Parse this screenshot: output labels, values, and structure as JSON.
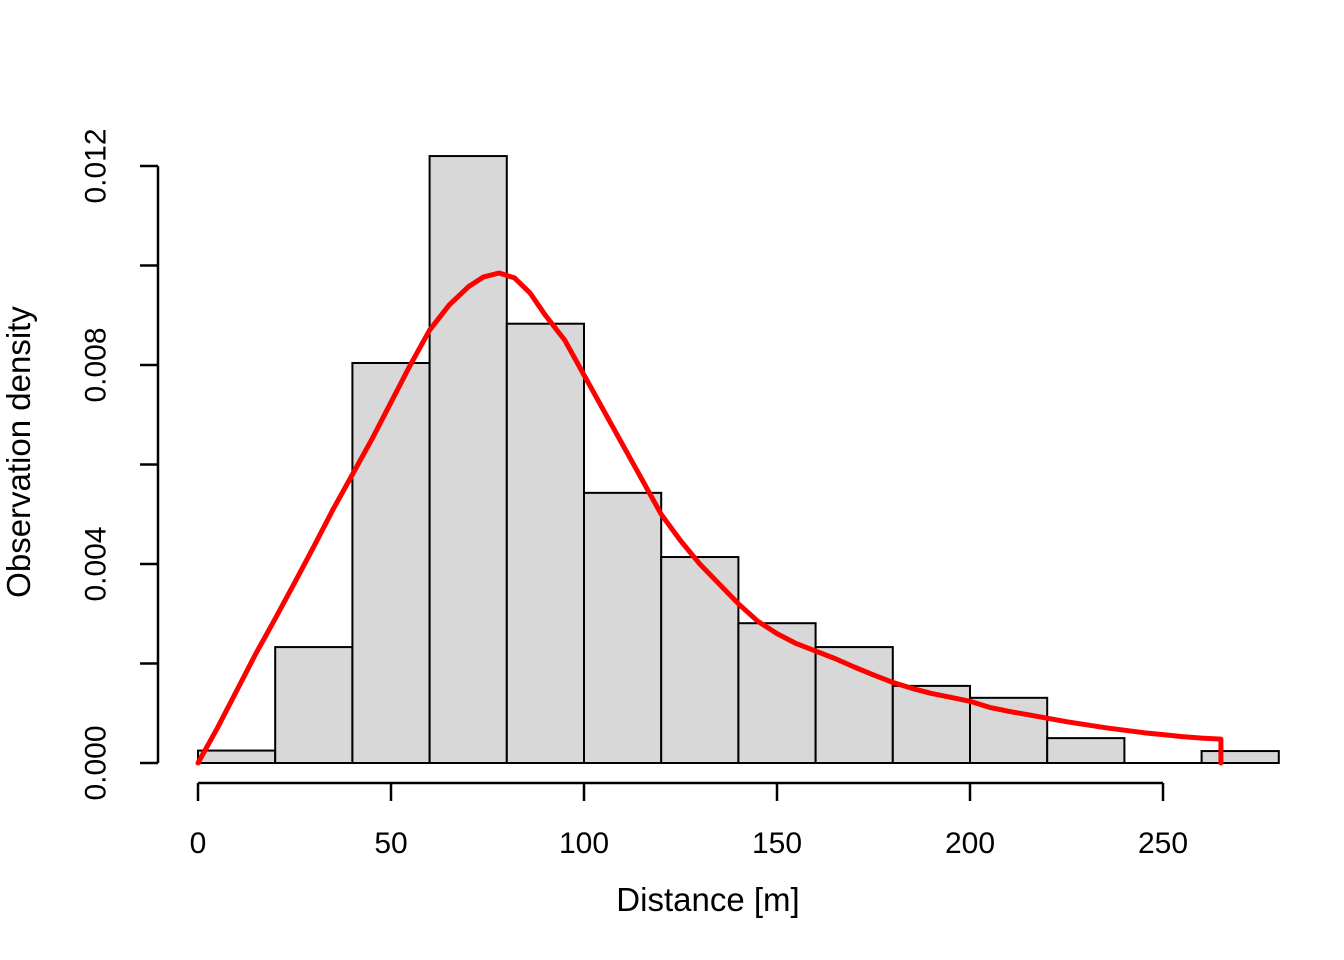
{
  "figure": {
    "background": "#ffffff"
  },
  "chart_data": {
    "type": "bar",
    "subtype": "histogram with fitted density curve overlay",
    "title": "",
    "xlabel": "Distance [m]",
    "ylabel": "Observation density",
    "xlim": [
      0,
      280
    ],
    "ylim": [
      0,
      0.012
    ],
    "grid": false,
    "legend_position": "none",
    "x_ticks": {
      "values": [
        0,
        50,
        100,
        150,
        200,
        250
      ],
      "labels": [
        "0",
        "50",
        "100",
        "150",
        "200",
        "250"
      ]
    },
    "y_ticks": {
      "values": [
        0,
        0.002,
        0.004,
        0.006,
        0.008,
        0.01,
        0.012
      ],
      "labels": [
        "0.000",
        "",
        "0.004",
        "",
        "0.008",
        "",
        "0.012"
      ]
    },
    "histogram": {
      "bin_edges": [
        0,
        20,
        40,
        60,
        80,
        100,
        120,
        140,
        160,
        180,
        200,
        220,
        240,
        260,
        280
      ],
      "densities": [
        0.00025,
        0.00233,
        0.00804,
        0.0122,
        0.00883,
        0.00543,
        0.00414,
        0.00281,
        0.00233,
        0.00155,
        0.00131,
        0.0005,
        0,
        0.00024
      ],
      "fill_color": "#d8d8d8",
      "border_color": "#000000"
    },
    "curve": {
      "name": "fitted-observation-density-curve",
      "color": "#ff0000",
      "stroke_width": 5,
      "truncation_x": 265,
      "peak": [
        77,
        0.0098
      ],
      "points": [
        [
          0,
          0
        ],
        [
          5,
          0.0007
        ],
        [
          10,
          0.00145
        ],
        [
          15,
          0.0022
        ],
        [
          20,
          0.0029
        ],
        [
          25,
          0.00362
        ],
        [
          30,
          0.00435
        ],
        [
          35,
          0.0051
        ],
        [
          40,
          0.0058
        ],
        [
          45,
          0.0065
        ],
        [
          50,
          0.00725
        ],
        [
          55,
          0.008
        ],
        [
          60,
          0.0087
        ],
        [
          65,
          0.0092
        ],
        [
          70,
          0.00957
        ],
        [
          74,
          0.00977
        ],
        [
          78,
          0.00985
        ],
        [
          82,
          0.00975
        ],
        [
          86,
          0.00945
        ],
        [
          90,
          0.009
        ],
        [
          95,
          0.0085
        ],
        [
          100,
          0.0078
        ],
        [
          105,
          0.0071
        ],
        [
          110,
          0.0064
        ],
        [
          115,
          0.0057
        ],
        [
          120,
          0.005
        ],
        [
          125,
          0.00447
        ],
        [
          130,
          0.004
        ],
        [
          135,
          0.0036
        ],
        [
          140,
          0.0032
        ],
        [
          145,
          0.00285
        ],
        [
          150,
          0.0026
        ],
        [
          155,
          0.0024
        ],
        [
          160,
          0.00225
        ],
        [
          165,
          0.0021
        ],
        [
          170,
          0.00193
        ],
        [
          175,
          0.00177
        ],
        [
          180,
          0.00162
        ],
        [
          185,
          0.0015
        ],
        [
          190,
          0.0014
        ],
        [
          195,
          0.00132
        ],
        [
          200,
          0.00124
        ],
        [
          205,
          0.00112
        ],
        [
          210,
          0.00104
        ],
        [
          215,
          0.00097
        ],
        [
          220,
          0.0009
        ],
        [
          225,
          0.00083
        ],
        [
          230,
          0.00077
        ],
        [
          235,
          0.00071
        ],
        [
          240,
          0.00066
        ],
        [
          245,
          0.00061
        ],
        [
          250,
          0.00057
        ],
        [
          255,
          0.00053
        ],
        [
          260,
          0.0005
        ],
        [
          265,
          0.00048
        ],
        [
          265,
          0
        ]
      ]
    },
    "axis_color": "#000000"
  }
}
